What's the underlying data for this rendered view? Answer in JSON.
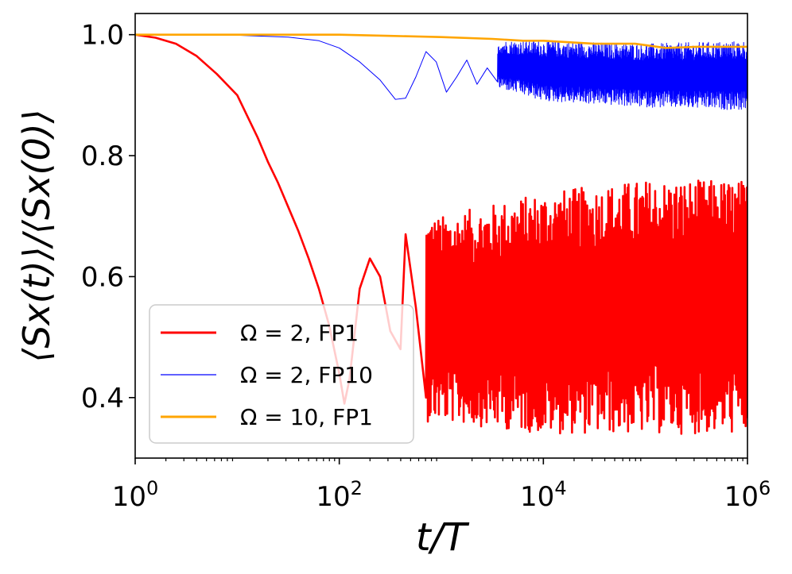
{
  "chart_data": {
    "type": "line",
    "title": "",
    "xlabel": "t/T",
    "ylabel": "⟨Sx(t)⟩/⟨Sx(0)⟩",
    "xscale": "log",
    "xlim_log10": [
      0,
      6
    ],
    "ylim": [
      0.3,
      1.035
    ],
    "x_ticks": [
      {
        "base": "10",
        "exp": "0",
        "log10": 0
      },
      {
        "base": "10",
        "exp": "2",
        "log10": 2
      },
      {
        "base": "10",
        "exp": "4",
        "log10": 4
      },
      {
        "base": "10",
        "exp": "6",
        "log10": 6
      }
    ],
    "y_ticks": [
      {
        "label": "0.4",
        "value": 0.4
      },
      {
        "label": "0.6",
        "value": 0.6
      },
      {
        "label": "0.8",
        "value": 0.8
      },
      {
        "label": "1.0",
        "value": 1.0
      }
    ],
    "legend_position": "lower-left",
    "series": [
      {
        "name": "Ω = 2, FP1",
        "color": "#ff0000",
        "width": "thick",
        "key_points_log10t": [
          [
            0,
            1.0
          ],
          [
            0.2,
            0.995
          ],
          [
            0.4,
            0.985
          ],
          [
            0.6,
            0.965
          ],
          [
            0.8,
            0.935
          ],
          [
            1.0,
            0.9
          ],
          [
            1.1,
            0.865
          ],
          [
            1.2,
            0.83
          ],
          [
            1.3,
            0.79
          ],
          [
            1.4,
            0.755
          ],
          [
            1.5,
            0.715
          ],
          [
            1.6,
            0.675
          ],
          [
            1.7,
            0.63
          ],
          [
            1.8,
            0.58
          ],
          [
            1.9,
            0.52
          ],
          [
            2.0,
            0.44
          ],
          [
            2.05,
            0.39
          ],
          [
            2.1,
            0.43
          ],
          [
            2.2,
            0.58
          ],
          [
            2.3,
            0.63
          ],
          [
            2.4,
            0.6
          ],
          [
            2.5,
            0.51
          ],
          [
            2.6,
            0.48
          ],
          [
            2.65,
            0.67
          ],
          [
            2.75,
            0.55
          ],
          [
            2.85,
            0.4
          ]
        ],
        "envelope_log10t": [
          [
            3.0,
            0.36,
            0.7
          ],
          [
            4.0,
            0.34,
            0.74
          ],
          [
            5.0,
            0.34,
            0.76
          ],
          [
            6.0,
            0.34,
            0.76
          ]
        ]
      },
      {
        "name": "Ω = 2, FP10",
        "color": "#0000ff",
        "width": "thin",
        "key_points_log10t": [
          [
            0,
            1.0
          ],
          [
            0.5,
            1.0
          ],
          [
            1.0,
            0.999
          ],
          [
            1.5,
            0.996
          ],
          [
            1.8,
            0.99
          ],
          [
            2.0,
            0.978
          ],
          [
            2.2,
            0.955
          ],
          [
            2.4,
            0.925
          ],
          [
            2.55,
            0.893
          ],
          [
            2.65,
            0.895
          ],
          [
            2.75,
            0.93
          ],
          [
            2.85,
            0.972
          ],
          [
            2.95,
            0.955
          ],
          [
            3.05,
            0.905
          ],
          [
            3.15,
            0.93
          ],
          [
            3.25,
            0.958
          ],
          [
            3.35,
            0.918
          ],
          [
            3.45,
            0.945
          ],
          [
            3.55,
            0.922
          ]
        ],
        "envelope_log10t": [
          [
            3.6,
            0.91,
            0.99
          ],
          [
            4.0,
            0.89,
            0.99
          ],
          [
            5.0,
            0.88,
            0.985
          ],
          [
            6.0,
            0.875,
            0.99
          ]
        ]
      },
      {
        "name": "Ω = 10, FP1",
        "color": "#ffa500",
        "width": "thick",
        "key_points_log10t": [
          [
            0,
            1.0
          ],
          [
            1.0,
            1.0
          ],
          [
            2.0,
            1.0
          ],
          [
            2.5,
            0.998
          ],
          [
            3.0,
            0.996
          ],
          [
            3.5,
            0.993
          ],
          [
            3.8,
            0.99
          ],
          [
            4.0,
            0.99
          ],
          [
            4.5,
            0.985
          ],
          [
            4.9,
            0.985
          ],
          [
            5.2,
            0.978
          ],
          [
            5.5,
            0.98
          ],
          [
            6.0,
            0.98
          ]
        ],
        "envelope_log10t": [
          [
            4.0,
            0.984,
            0.996
          ],
          [
            5.0,
            0.974,
            0.992
          ],
          [
            6.0,
            0.968,
            0.994
          ]
        ]
      }
    ]
  }
}
